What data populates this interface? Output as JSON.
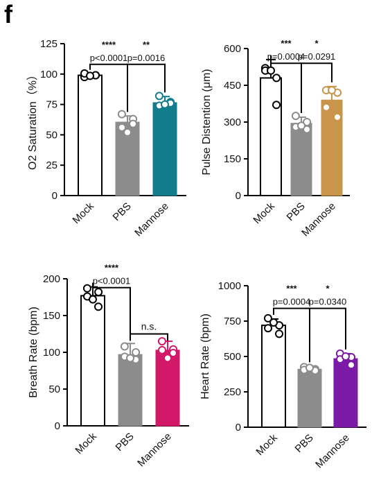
{
  "panel_label": "f",
  "colors": {
    "mock_fill": "#ffffff",
    "pbs_fill": "#8c8c8c",
    "pbs_point": "#8c8c8c",
    "axis": "#000000"
  },
  "chart_data": [
    {
      "type": "bar",
      "categories": [
        "Mock",
        "PBS",
        "Mannose"
      ],
      "ylabel": "O2 Saturation（%）",
      "ylim": [
        0,
        125
      ],
      "yticks": [
        0,
        25,
        50,
        75,
        100,
        125
      ],
      "ytick_labels": [
        "0",
        "25",
        "50",
        "75",
        "100",
        "125"
      ],
      "values": [
        99,
        60.5,
        76.5
      ],
      "errors": [
        1,
        5,
        5
      ],
      "points": [
        [
          97.5,
          99,
          100.5,
          99,
          98.5
        ],
        [
          67,
          63,
          56,
          59,
          52
        ],
        [
          82,
          77,
          74,
          76,
          75
        ]
      ],
      "bar_colors": [
        "#ffffff",
        "#8c8c8c",
        "#127c8c"
      ],
      "comparisons": [
        {
          "from": 0,
          "to": 1,
          "stars": "****",
          "p": "p<0.0001",
          "level": 108
        },
        {
          "from": 1,
          "to": 2,
          "stars": "**",
          "p": "p=0.0016",
          "level": 108
        }
      ],
      "bracket_top": 108
    },
    {
      "type": "bar",
      "categories": [
        "Mock",
        "PBS",
        "Mannose"
      ],
      "ylabel": "Pulse Distention (μm)",
      "ylim": [
        0,
        600
      ],
      "yticks": [
        0,
        150,
        300,
        450,
        600
      ],
      "ytick_labels": [
        "0",
        "150",
        "300",
        "450",
        "600"
      ],
      "values": [
        480,
        295,
        390
      ],
      "errors": [
        75,
        25,
        55
      ],
      "points": [
        [
          520,
          480,
          510,
          370,
          510
        ],
        [
          325,
          300,
          280,
          270,
          285
        ],
        [
          430,
          420,
          360,
          320,
          430
        ]
      ],
      "bar_colors": [
        "#ffffff",
        "#8c8c8c",
        "#c9954a"
      ],
      "comparisons": [
        {
          "from": 0,
          "to": 1,
          "stars": "***",
          "p": "p=0.0004",
          "level": 540
        },
        {
          "from": 1,
          "to": 2,
          "stars": "*",
          "p": "p=0.0291",
          "level": 540
        }
      ],
      "bracket_top": 540
    },
    {
      "type": "bar",
      "categories": [
        "Mock",
        "PBS",
        "Mannose"
      ],
      "ylabel": "Breath Rate (bpm)",
      "ylim": [
        0,
        200
      ],
      "yticks": [
        0,
        50,
        100,
        150,
        200
      ],
      "ytick_labels": [
        "0",
        "50",
        "100",
        "150",
        "200"
      ],
      "values": [
        177,
        97,
        103
      ],
      "errors": [
        12,
        15,
        12
      ],
      "points": [
        [
          187,
          182,
          176,
          162,
          172
        ],
        [
          108,
          100,
          94,
          90,
          92
        ],
        [
          115,
          104,
          103,
          99,
          92
        ]
      ],
      "bar_colors": [
        "#ffffff",
        "#8c8c8c",
        "#d41869"
      ],
      "comparisons": [
        {
          "from": 0,
          "to": 1,
          "stars": "****",
          "p": "p<0.0001",
          "level": 188
        },
        {
          "from": 1,
          "to": 2,
          "stars": "n.s.",
          "p": "",
          "level": 125
        }
      ],
      "bracket_top": 188
    },
    {
      "type": "bar",
      "categories": [
        "Mock",
        "PBS",
        "Mannose"
      ],
      "ylabel": "Heart Rate (bpm)",
      "ylim": [
        0,
        1000
      ],
      "yticks": [
        0,
        250,
        500,
        750,
        1000
      ],
      "ytick_labels": [
        "0",
        "250",
        "500",
        "750",
        "1000"
      ],
      "values": [
        720,
        410,
        485
      ],
      "errors": [
        45,
        20,
        35
      ],
      "points": [
        [
          770,
          720,
          700,
          660,
          740
        ],
        [
          425,
          410,
          405,
          400,
          420
        ],
        [
          520,
          495,
          480,
          440,
          500
        ]
      ],
      "bar_colors": [
        "#ffffff",
        "#8c8c8c",
        "#7a1aa6"
      ],
      "comparisons": [
        {
          "from": 0,
          "to": 1,
          "stars": "***",
          "p": "p=0.0004",
          "level": 840
        },
        {
          "from": 1,
          "to": 2,
          "stars": "*",
          "p": "p=0.0340",
          "level": 840
        }
      ],
      "bracket_top": 840
    }
  ]
}
